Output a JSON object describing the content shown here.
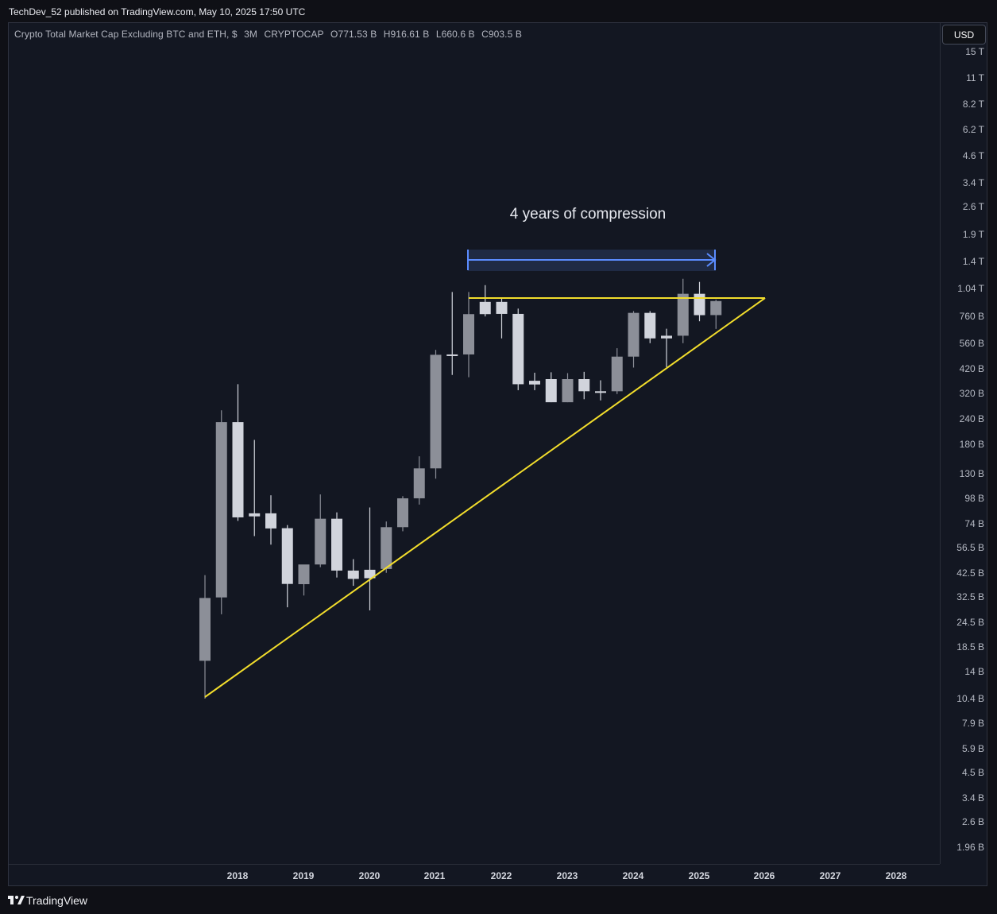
{
  "published": {
    "text": "TechDev_52 published on TradingView.com, May 10, 2025 17:50 UTC"
  },
  "legend": {
    "symbol": "Crypto Total Market Cap Excluding BTC and ETH, $",
    "interval": "3M",
    "exchange": "CRYPTOCAP",
    "open": "O771.53 B",
    "high": "H916.61 B",
    "low": "L660.6 B",
    "close": "C903.5 B"
  },
  "currency_button": "USD",
  "price_scale": [
    "15 T",
    "11 T",
    "8.2 T",
    "6.2 T",
    "4.6 T",
    "3.4 T",
    "2.6 T",
    "1.9 T",
    "1.4 T",
    "1.04 T",
    "760 B",
    "560 B",
    "420 B",
    "320 B",
    "240 B",
    "180 B",
    "130 B",
    "98 B",
    "74 B",
    "56.5 B",
    "42.5 B",
    "32.5 B",
    "24.5 B",
    "18.5 B",
    "14 B",
    "10.4 B",
    "7.9 B",
    "5.9 B",
    "4.5 B",
    "3.4 B",
    "2.6 B",
    "1.96 B"
  ],
  "time_scale": [
    "2018",
    "2019",
    "2020",
    "2021",
    "2022",
    "2023",
    "2024",
    "2025",
    "2026",
    "2027",
    "2028"
  ],
  "annotation": {
    "text": "4 years of compression"
  },
  "brand": "TradingView",
  "colors": {
    "background": "#131722",
    "bull_candle": "#d1d4dc",
    "bear_candle": "#8c8f98",
    "trendline": "#f2dd2c",
    "range_arrow": "#5b8cff"
  },
  "chart_data": {
    "type": "candlestick",
    "title": "Crypto Total Market Cap Excluding BTC and ETH, $",
    "interval": "3M",
    "exchange": "CRYPTOCAP",
    "y_scale": "log",
    "ylim_units": "billion USD",
    "ylim": [
      1.96,
      15000
    ],
    "x_label": "",
    "y_label": "",
    "x_ticks": [
      "2018",
      "2019",
      "2020",
      "2021",
      "2022",
      "2023",
      "2024",
      "2025",
      "2026",
      "2027",
      "2028"
    ],
    "y_ticks": [
      "1.96 B",
      "2.6 B",
      "3.4 B",
      "4.5 B",
      "5.9 B",
      "7.9 B",
      "10.4 B",
      "14 B",
      "18.5 B",
      "24.5 B",
      "32.5 B",
      "42.5 B",
      "56.5 B",
      "74 B",
      "98 B",
      "130 B",
      "180 B",
      "240 B",
      "320 B",
      "420 B",
      "560 B",
      "760 B",
      "1.04 T",
      "1.4 T",
      "1.9 T",
      "2.6 T",
      "3.4 T",
      "4.6 T",
      "6.2 T",
      "8.2 T",
      "11 T",
      "15 T"
    ],
    "series": [
      {
        "date": "2017-Q3",
        "open": 15.9,
        "high": 41.6,
        "low": 10.4,
        "close": 32.2,
        "color": "bear"
      },
      {
        "date": "2017-Q4",
        "open": 32.4,
        "high": 265,
        "low": 26.8,
        "close": 232,
        "color": "bear"
      },
      {
        "date": "2018-Q1",
        "open": 232,
        "high": 355,
        "low": 76.5,
        "close": 79.6,
        "color": "bull"
      },
      {
        "date": "2018-Q2",
        "open": 80.5,
        "high": 190,
        "low": 64.5,
        "close": 83.3,
        "color": "bull"
      },
      {
        "date": "2018-Q3",
        "open": 83.3,
        "high": 102,
        "low": 58.6,
        "close": 70.3,
        "color": "bull"
      },
      {
        "date": "2018-Q4",
        "open": 70.5,
        "high": 73.0,
        "low": 29.0,
        "close": 37.7,
        "color": "bull"
      },
      {
        "date": "2019-Q1",
        "open": 37.6,
        "high": 46.1,
        "low": 33.1,
        "close": 46.9,
        "color": "bear"
      },
      {
        "date": "2019-Q2",
        "open": 46.9,
        "high": 103,
        "low": 45.5,
        "close": 78.4,
        "color": "bear"
      },
      {
        "date": "2019-Q3",
        "open": 78.4,
        "high": 84.2,
        "low": 40.5,
        "close": 43.8,
        "color": "bull"
      },
      {
        "date": "2019-Q4",
        "open": 43.8,
        "high": 49.8,
        "low": 36.9,
        "close": 39.9,
        "color": "bull"
      },
      {
        "date": "2020-Q1",
        "open": 44.2,
        "high": 89.0,
        "low": 28.0,
        "close": 40.2,
        "color": "bull"
      },
      {
        "date": "2020-Q2",
        "open": 44.6,
        "high": 76.0,
        "low": 42.7,
        "close": 71.3,
        "color": "bear"
      },
      {
        "date": "2020-Q3",
        "open": 71.3,
        "high": 101,
        "low": 68.1,
        "close": 98.6,
        "color": "bear"
      },
      {
        "date": "2020-Q4",
        "open": 98.6,
        "high": 158,
        "low": 91.9,
        "close": 138,
        "color": "bear"
      },
      {
        "date": "2021-Q1",
        "open": 138,
        "high": 522,
        "low": 123,
        "close": 494,
        "color": "bear"
      },
      {
        "date": "2021-Q2",
        "open": 494,
        "high": 1000,
        "low": 394,
        "close": 496,
        "color": "bull"
      },
      {
        "date": "2021-Q3",
        "open": 496,
        "high": 1000,
        "low": 384,
        "close": 780,
        "color": "bear"
      },
      {
        "date": "2021-Q4",
        "open": 780,
        "high": 1080,
        "low": 760,
        "close": 895,
        "color": "bull"
      },
      {
        "date": "2022-Q1",
        "open": 895,
        "high": 932,
        "low": 594,
        "close": 782,
        "color": "bull"
      },
      {
        "date": "2022-Q2",
        "open": 782,
        "high": 830,
        "low": 332,
        "close": 355,
        "color": "bull"
      },
      {
        "date": "2022-Q3",
        "open": 354,
        "high": 404,
        "low": 332,
        "close": 369,
        "color": "bull"
      },
      {
        "date": "2022-Q4",
        "open": 376,
        "high": 406,
        "low": 290,
        "close": 290,
        "color": "bull"
      },
      {
        "date": "2023-Q1",
        "open": 290,
        "high": 402,
        "low": 290,
        "close": 376,
        "color": "bear"
      },
      {
        "date": "2023-Q2",
        "open": 376,
        "high": 408,
        "low": 300,
        "close": 328,
        "color": "bull"
      },
      {
        "date": "2023-Q3",
        "open": 328,
        "high": 371,
        "low": 296,
        "close": 328,
        "color": "bull"
      },
      {
        "date": "2023-Q4",
        "open": 328,
        "high": 532,
        "low": 318,
        "close": 484,
        "color": "bear"
      },
      {
        "date": "2024-Q1",
        "open": 484,
        "high": 807,
        "low": 428,
        "close": 791,
        "color": "bear"
      },
      {
        "date": "2024-Q2",
        "open": 791,
        "high": 807,
        "low": 563,
        "close": 594,
        "color": "bull"
      },
      {
        "date": "2024-Q3",
        "open": 594,
        "high": 662,
        "low": 430,
        "close": 612,
        "color": "bull"
      },
      {
        "date": "2024-Q4",
        "open": 612,
        "high": 1160,
        "low": 563,
        "close": 980,
        "color": "bear"
      },
      {
        "date": "2025-Q1",
        "open": 980,
        "high": 1120,
        "low": 720,
        "close": 771,
        "color": "bull"
      },
      {
        "date": "2025-Q2",
        "open": 771.53,
        "high": 916.61,
        "low": 660.6,
        "close": 903.5,
        "color": "bear"
      }
    ],
    "annotations": [
      {
        "type": "horizontal_resistance",
        "label": "",
        "value": 980,
        "from": "2021-Q3",
        "to": "2026-Q1"
      },
      {
        "type": "ascending_trendline",
        "label": "",
        "from": [
          "2017-Q3",
          10.4
        ],
        "to": [
          "2026-Q1",
          980
        ]
      },
      {
        "type": "range_arrow",
        "label": "4 years of compression",
        "from": "2021-Q3",
        "to": "2025-Q2"
      }
    ]
  }
}
